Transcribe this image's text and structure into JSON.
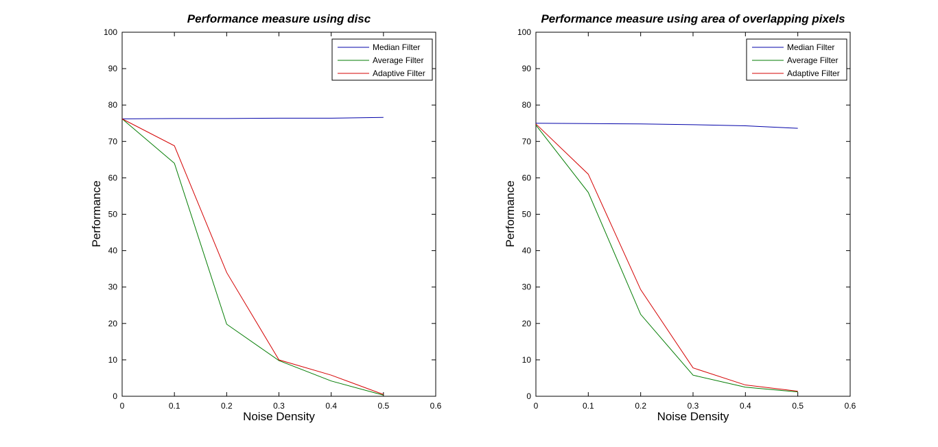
{
  "figure": {
    "background": "#FFFFFF",
    "axis_color": "#000000",
    "text_color": "#000000"
  },
  "chart_data": [
    {
      "type": "line",
      "title": "Performance measure using disc",
      "xlabel": "Noise Density",
      "ylabel": "Performance",
      "xlim": [
        0,
        0.6
      ],
      "ylim": [
        0,
        100
      ],
      "xtick_values": [
        0,
        0.1,
        0.2,
        0.3,
        0.4,
        0.5,
        0.6
      ],
      "xtick_labels": [
        "0",
        "0.1",
        "0.2",
        "0.3",
        "0.4",
        "0.5",
        "0.6"
      ],
      "ytick_values": [
        0,
        10,
        20,
        30,
        40,
        50,
        60,
        70,
        80,
        90,
        100
      ],
      "ytick_labels": [
        "0",
        "10",
        "20",
        "30",
        "40",
        "50",
        "60",
        "70",
        "80",
        "90",
        "100"
      ],
      "grid": false,
      "x": [
        0,
        0.1,
        0.2,
        0.3,
        0.4,
        0.5
      ],
      "series": [
        {
          "name": "Median Filter",
          "color": "#0000A8",
          "values": [
            76.2,
            76.3,
            76.3,
            76.4,
            76.4,
            76.6
          ]
        },
        {
          "name": "Average Filter",
          "color": "#007B00",
          "values": [
            76.2,
            64.0,
            19.8,
            9.8,
            4.2,
            0.3
          ]
        },
        {
          "name": "Adaptive Filter",
          "color": "#D40000",
          "values": [
            76.2,
            68.8,
            34.0,
            10.0,
            5.8,
            0.5
          ]
        }
      ],
      "legend": {
        "position": "top-right",
        "entries": [
          "Median Filter",
          "Average Filter",
          "Adaptive Filter"
        ]
      }
    },
    {
      "type": "line",
      "title": "Performance measure using area of overlapping pixels",
      "xlabel": "Noise Density",
      "ylabel": "Performance",
      "xlim": [
        0,
        0.6
      ],
      "ylim": [
        0,
        100
      ],
      "xtick_values": [
        0,
        0.1,
        0.2,
        0.3,
        0.4,
        0.5,
        0.6
      ],
      "xtick_labels": [
        "0",
        "0.1",
        "0.2",
        "0.3",
        "0.4",
        "0.5",
        "0.6"
      ],
      "ytick_values": [
        0,
        10,
        20,
        30,
        40,
        50,
        60,
        70,
        80,
        90,
        100
      ],
      "ytick_labels": [
        "0",
        "10",
        "20",
        "30",
        "40",
        "50",
        "60",
        "70",
        "80",
        "90",
        "100"
      ],
      "grid": false,
      "x": [
        0,
        0.1,
        0.2,
        0.3,
        0.4,
        0.5
      ],
      "series": [
        {
          "name": "Median Filter",
          "color": "#0000A8",
          "values": [
            75.0,
            74.9,
            74.8,
            74.6,
            74.3,
            73.6
          ]
        },
        {
          "name": "Average Filter",
          "color": "#007B00",
          "values": [
            74.5,
            56.0,
            22.5,
            5.8,
            2.5,
            1.2
          ]
        },
        {
          "name": "Adaptive Filter",
          "color": "#D40000",
          "values": [
            74.8,
            61.0,
            29.3,
            7.8,
            3.1,
            1.4
          ]
        }
      ],
      "legend": {
        "position": "top-right",
        "entries": [
          "Median Filter",
          "Average Filter",
          "Adaptive Filter"
        ]
      }
    }
  ]
}
